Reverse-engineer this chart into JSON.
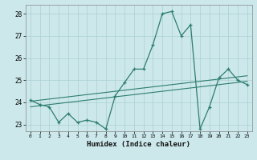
{
  "xlabel": "Humidex (Indice chaleur)",
  "x": [
    0,
    1,
    2,
    3,
    4,
    5,
    6,
    7,
    8,
    9,
    10,
    11,
    12,
    13,
    14,
    15,
    16,
    17,
    18,
    19,
    20,
    21,
    22,
    23
  ],
  "y_main": [
    24.1,
    23.9,
    23.8,
    23.1,
    23.5,
    23.1,
    23.2,
    23.1,
    22.8,
    24.3,
    24.9,
    25.5,
    25.5,
    26.6,
    28.0,
    28.1,
    27.0,
    27.5,
    22.8,
    23.8,
    25.1,
    25.5,
    25.0,
    24.8
  ],
  "y_trend1": [
    24.05,
    24.1,
    24.15,
    24.2,
    24.25,
    24.3,
    24.35,
    24.4,
    24.45,
    24.5,
    24.55,
    24.6,
    24.65,
    24.7,
    24.75,
    24.8,
    24.85,
    24.9,
    24.95,
    25.0,
    25.05,
    25.1,
    25.15,
    25.2
  ],
  "y_trend2": [
    23.8,
    23.85,
    23.9,
    23.95,
    24.0,
    24.05,
    24.1,
    24.15,
    24.2,
    24.25,
    24.3,
    24.35,
    24.4,
    24.45,
    24.5,
    24.55,
    24.6,
    24.65,
    24.7,
    24.75,
    24.8,
    24.85,
    24.9,
    24.95
  ],
  "ylim": [
    22.7,
    28.4
  ],
  "yticks": [
    23,
    24,
    25,
    26,
    27,
    28
  ],
  "line_color": "#2e7d6e",
  "bg_color": "#cce8eb",
  "grid_color": "#aacfd4",
  "marker": "+"
}
